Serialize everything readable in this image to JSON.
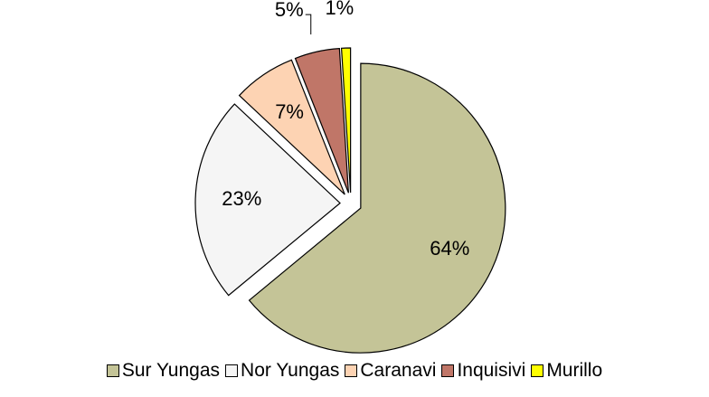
{
  "chart_data": {
    "type": "pie",
    "categories": [
      "Sur Yungas",
      "Nor Yungas",
      "Caranavi",
      "Inquisivi",
      "Murillo"
    ],
    "values": [
      64,
      23,
      7,
      5,
      1
    ],
    "value_labels": [
      "64%",
      "23%",
      "7%",
      "5%",
      "1%"
    ],
    "colors": [
      "#c4c497",
      "#f5f5f5",
      "#fdd3b3",
      "#c07668",
      "#ffff00"
    ],
    "legend": "bottom"
  }
}
